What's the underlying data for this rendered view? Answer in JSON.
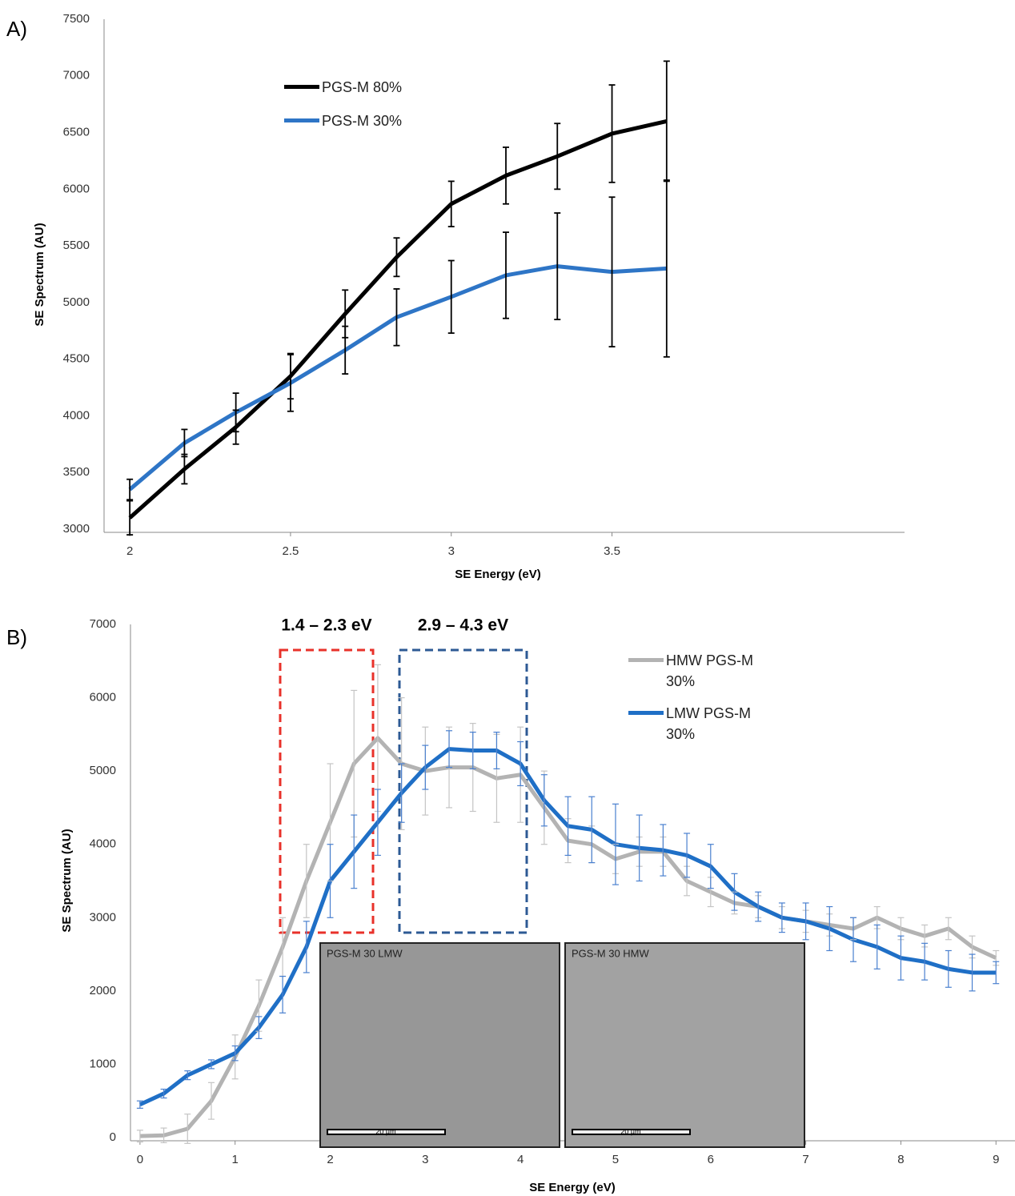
{
  "chart_data": [
    {
      "type": "line",
      "panel": "A)",
      "xlabel": "SE Energy (eV)",
      "ylabel": "SE Spectrum (AU)",
      "x": [
        2,
        2.17,
        2.33,
        2.5,
        2.67,
        2.83,
        3,
        3.17,
        3.33,
        3.5,
        3.67
      ],
      "xlim": [
        1.92,
        4.41
      ],
      "xticks": [
        2,
        2.5,
        3,
        3.5
      ],
      "ylim": [
        3000,
        7500
      ],
      "yticks": [
        3000,
        3500,
        4000,
        4500,
        5000,
        5500,
        6000,
        6500,
        7000,
        7500
      ],
      "legend": "upper left",
      "series": [
        {
          "name": "PGS-M 80%",
          "color": "#000000",
          "values": [
            3100,
            3530,
            3900,
            4350,
            4900,
            5400,
            5870,
            6120,
            6290,
            6490,
            6600
          ],
          "errors": [
            150,
            130,
            150,
            200,
            210,
            170,
            200,
            250,
            290,
            430,
            530
          ]
        },
        {
          "name": "PGS-M 30%",
          "color": "#2e75c6",
          "values": [
            3350,
            3760,
            4030,
            4290,
            4580,
            4870,
            5050,
            5240,
            5320,
            5270,
            5300
          ],
          "errors": [
            90,
            120,
            170,
            250,
            210,
            250,
            320,
            380,
            470,
            660,
            780
          ]
        }
      ]
    },
    {
      "type": "line",
      "panel": "B)",
      "xlabel": "SE Energy (eV)",
      "ylabel": "SE Spectrum (AU)",
      "x": [
        0,
        0.25,
        0.5,
        0.75,
        1,
        1.25,
        1.5,
        1.75,
        2,
        2.25,
        2.5,
        2.75,
        3,
        3.25,
        3.5,
        3.75,
        4,
        4.25,
        4.5,
        4.75,
        5,
        5.25,
        5.5,
        5.75,
        6,
        6.25,
        6.5,
        6.75,
        7,
        7.25,
        7.5,
        7.75,
        8,
        8.25,
        8.5,
        8.75,
        9
      ],
      "xlim": [
        -0.1,
        9.2
      ],
      "xticks": [
        0,
        1,
        2,
        3,
        4,
        5,
        6,
        7,
        8,
        9
      ],
      "ylim": [
        0,
        7000
      ],
      "yticks": [
        0,
        1000,
        2000,
        3000,
        4000,
        5000,
        6000,
        7000
      ],
      "legend": "upper right",
      "annotations": [
        "1.4 – 2.3 eV",
        "2.9 – 4.3 eV"
      ],
      "insets": [
        {
          "label": "PGS-M 30 LMW",
          "scale": "20 µm"
        },
        {
          "label": "PGS-M 30 HMW",
          "scale": "20 µm"
        }
      ],
      "series": [
        {
          "name": "HMW PGS-M 30%",
          "color": "#b3b3b3",
          "values": [
            20,
            30,
            120,
            500,
            1100,
            1800,
            2600,
            3500,
            4300,
            5100,
            5450,
            5100,
            5000,
            5050,
            5050,
            4900,
            4950,
            4500,
            4050,
            4000,
            3800,
            3900,
            3900,
            3500,
            3350,
            3200,
            3150,
            3000,
            2950,
            2900,
            2850,
            3000,
            2850,
            2750,
            2850,
            2600,
            2450
          ],
          "errors": [
            80,
            100,
            200,
            250,
            300,
            350,
            400,
            500,
            800,
            1000,
            1000,
            900,
            600,
            550,
            600,
            600,
            650,
            500,
            300,
            250,
            200,
            200,
            200,
            200,
            200,
            150,
            150,
            150,
            150,
            150,
            150,
            150,
            150,
            150,
            150,
            150,
            100
          ]
        },
        {
          "name": "LMW PGS-M 30%",
          "color": "#1f6fc6",
          "values": [
            450,
            600,
            850,
            1000,
            1150,
            1500,
            1950,
            2600,
            3500,
            3900,
            4300,
            4700,
            5050,
            5300,
            5280,
            5280,
            5100,
            4600,
            4250,
            4200,
            4000,
            3950,
            3920,
            3850,
            3700,
            3350,
            3150,
            3000,
            2950,
            2850,
            2700,
            2600,
            2450,
            2400,
            2300,
            2250,
            2250
          ],
          "errors": [
            50,
            60,
            60,
            60,
            100,
            150,
            250,
            350,
            500,
            500,
            450,
            400,
            300,
            250,
            250,
            250,
            300,
            350,
            400,
            450,
            550,
            450,
            350,
            300,
            300,
            250,
            200,
            200,
            250,
            300,
            300,
            300,
            300,
            250,
            250,
            250,
            150
          ]
        }
      ]
    }
  ]
}
